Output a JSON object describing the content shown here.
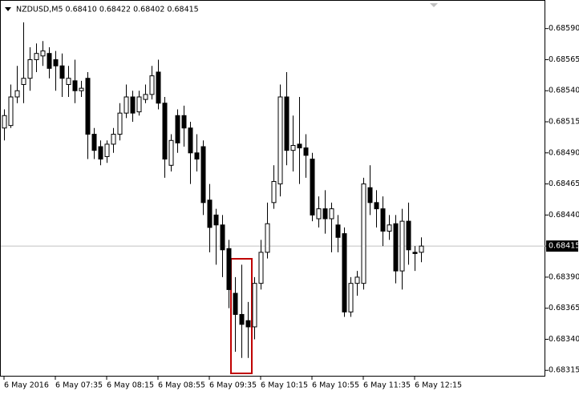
{
  "chart_data": {
    "type": "candlestick",
    "title": "NZDUSD,M5  0.68410 0.68422 0.68402 0.68415",
    "categories": [
      "6 May 2016",
      null,
      null,
      null,
      null,
      null,
      null,
      null,
      "6 May 07:35",
      null,
      null,
      null,
      null,
      null,
      null,
      null,
      "6 May 08:15",
      null,
      null,
      null,
      null,
      null,
      null,
      null,
      "6 May 08:55",
      null,
      null,
      null,
      null,
      null,
      null,
      null,
      "6 May 09:35",
      null,
      null,
      null,
      null,
      null,
      null,
      null,
      "6 May 10:15",
      null,
      null,
      null,
      null,
      null,
      null,
      null,
      "6 May 10:55",
      null,
      null,
      null,
      null,
      null,
      null,
      null,
      "6 May 11:35",
      null,
      null,
      null,
      null,
      null,
      null,
      null,
      "6 May 12:15",
      null
    ],
    "open": [
      0.6851,
      0.68512,
      0.68535,
      0.68545,
      0.6855,
      0.68565,
      0.68568,
      0.6857,
      0.68565,
      0.6856,
      0.68545,
      0.68548,
      0.6854,
      0.6855,
      0.68505,
      0.68495,
      0.68487,
      0.68497,
      0.68505,
      0.68522,
      0.68535,
      0.68523,
      0.68533,
      0.68537,
      0.68555,
      0.6853,
      0.6848,
      0.6852,
      0.6852,
      0.6851,
      0.6849,
      0.68495,
      0.68452,
      0.6844,
      0.68432,
      0.68413,
      0.68377,
      0.6836,
      0.68355,
      0.6835,
      0.68385,
      0.6841,
      0.6845,
      0.68465,
      0.68535,
      0.68492,
      0.68497,
      0.68494,
      0.68485,
      0.68437,
      0.68445,
      0.68437,
      0.68432,
      0.68425,
      0.68362,
      0.68385,
      0.68385,
      0.68462,
      0.6845,
      0.68445,
      0.68427,
      0.68433,
      0.68395,
      0.68435,
      0.6841,
      0.6841
    ],
    "high": [
      0.68525,
      0.68545,
      0.6856,
      0.68595,
      0.68575,
      0.68578,
      0.6858,
      0.68575,
      0.68572,
      0.6857,
      0.6856,
      0.68565,
      0.68548,
      0.68555,
      0.6851,
      0.685,
      0.685,
      0.6851,
      0.6853,
      0.68545,
      0.6854,
      0.6854,
      0.68545,
      0.6856,
      0.68565,
      0.68535,
      0.68505,
      0.68525,
      0.68528,
      0.68515,
      0.68505,
      0.685,
      0.68465,
      0.68445,
      0.6844,
      0.6842,
      0.6839,
      0.684,
      0.6837,
      0.6839,
      0.6842,
      0.6845,
      0.6848,
      0.68545,
      0.68555,
      0.6852,
      0.68535,
      0.68505,
      0.6849,
      0.68455,
      0.6846,
      0.6845,
      0.6844,
      0.6843,
      0.6839,
      0.68395,
      0.6847,
      0.6848,
      0.6846,
      0.68455,
      0.6844,
      0.6844,
      0.68445,
      0.6845,
      0.68415,
      0.68422
    ],
    "low": [
      0.685,
      0.6851,
      0.6853,
      0.6853,
      0.6854,
      0.68555,
      0.6856,
      0.6855,
      0.6854,
      0.68535,
      0.68535,
      0.6853,
      0.68535,
      0.68485,
      0.68485,
      0.6848,
      0.68482,
      0.6849,
      0.685,
      0.68518,
      0.68515,
      0.6852,
      0.6853,
      0.68533,
      0.68525,
      0.6847,
      0.68475,
      0.6849,
      0.68495,
      0.68465,
      0.68475,
      0.6844,
      0.6841,
      0.684,
      0.6839,
      0.68365,
      0.6833,
      0.68325,
      0.68325,
      0.6834,
      0.6838,
      0.68405,
      0.68445,
      0.68455,
      0.6848,
      0.68475,
      0.68465,
      0.6847,
      0.68435,
      0.6843,
      0.68425,
      0.6841,
      0.6841,
      0.68358,
      0.68358,
      0.68375,
      0.6838,
      0.6844,
      0.6843,
      0.68415,
      0.6842,
      0.68385,
      0.6838,
      0.684,
      0.68395,
      0.68402
    ],
    "close": [
      0.6852,
      0.68535,
      0.6854,
      0.6855,
      0.68565,
      0.6857,
      0.68572,
      0.68558,
      0.6856,
      0.6855,
      0.6855,
      0.6854,
      0.68542,
      0.68505,
      0.68492,
      0.68485,
      0.68497,
      0.68505,
      0.68522,
      0.68535,
      0.68522,
      0.68535,
      0.68537,
      0.68552,
      0.6853,
      0.68485,
      0.685,
      0.68498,
      0.6851,
      0.6849,
      0.68485,
      0.6845,
      0.6843,
      0.68432,
      0.68412,
      0.6838,
      0.6836,
      0.68352,
      0.6835,
      0.68385,
      0.6841,
      0.68433,
      0.68467,
      0.68535,
      0.68492,
      0.68496,
      0.68494,
      0.68488,
      0.6844,
      0.68445,
      0.68437,
      0.68445,
      0.68422,
      0.68362,
      0.68385,
      0.6839,
      0.68465,
      0.6845,
      0.68445,
      0.68427,
      0.68432,
      0.68395,
      0.68435,
      0.68412,
      0.68409,
      0.68415
    ],
    "current_price": 0.68415,
    "ylim": [
      0.6831,
      0.68613
    ],
    "yticks": [
      {
        "value": 0.6859,
        "label": "0.68590"
      },
      0.68565,
      {
        "value": 0.6854,
        "label": "0.68540"
      },
      0.68515,
      {
        "value": 0.6849,
        "label": "0.68490"
      },
      0.68465,
      {
        "value": 0.6844,
        "label": "0.68440"
      },
      0.68415,
      {
        "value": 0.6839,
        "label": "0.68390"
      },
      0.68365,
      {
        "value": 0.6834,
        "label": "0.68340"
      },
      0.68315
    ]
  }
}
